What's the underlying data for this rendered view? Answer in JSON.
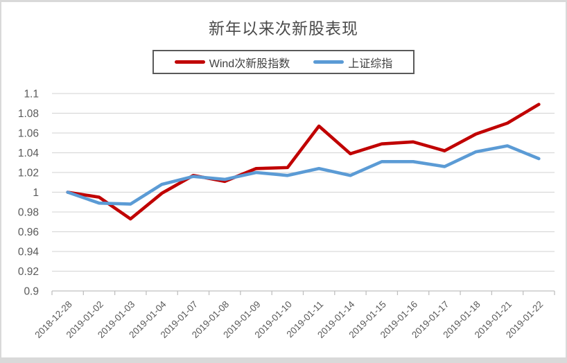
{
  "window": {
    "background": "#ffffff",
    "frame_color": "#d9d9d9"
  },
  "chart_data": {
    "type": "line",
    "title": "新年以来次新股表现",
    "categories": [
      "2018-12-28",
      "2019-01-02",
      "2019-01-03",
      "2019-01-04",
      "2019-01-07",
      "2019-01-08",
      "2019-01-09",
      "2019-01-10",
      "2019-01-11",
      "2019-01-14",
      "2019-01-15",
      "2019-01-16",
      "2019-01-17",
      "2019-01-18",
      "2019-01-21",
      "2019-01-22"
    ],
    "series": [
      {
        "name": "Wind次新股指数",
        "color": "#c00000",
        "values": [
          1.0,
          0.995,
          0.973,
          0.999,
          1.017,
          1.011,
          1.024,
          1.025,
          1.067,
          1.039,
          1.049,
          1.051,
          1.042,
          1.059,
          1.07,
          1.089
        ]
      },
      {
        "name": "上证综指",
        "color": "#5b9bd5",
        "values": [
          1.0,
          0.989,
          0.988,
          1.008,
          1.016,
          1.013,
          1.02,
          1.017,
          1.024,
          1.017,
          1.031,
          1.031,
          1.026,
          1.041,
          1.047,
          1.034
        ]
      }
    ],
    "xlabel": "",
    "ylabel": "",
    "ylim": [
      0.9,
      1.1
    ],
    "ytick_step": 0.02,
    "ytick_labels": [
      "1.1",
      "1.08",
      "1.06",
      "1.04",
      "1.02",
      "1",
      "0.98",
      "0.96",
      "0.94",
      "0.92",
      "0.9"
    ],
    "grid": "horizontal",
    "legend_position": "top-center",
    "colors": {
      "gridline": "#d9d9d9",
      "axis_line": "#bfbfbf",
      "tick_label": "#595959",
      "title_text": "#4a4a4a",
      "legend_text": "#404040",
      "legend_border": "#595959"
    }
  }
}
